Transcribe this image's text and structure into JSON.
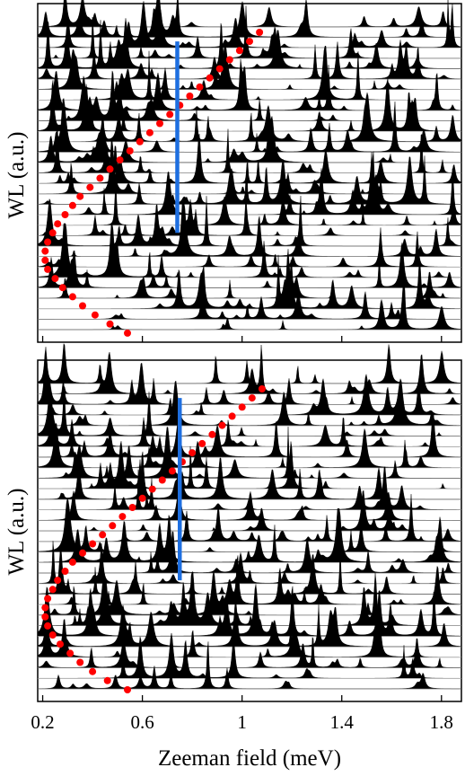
{
  "chart_data": [
    {
      "type": "waterfall-line",
      "panel": "top",
      "ylabel": "WL (a.u.)",
      "xlabel": "",
      "xlim": [
        0.18,
        1.88
      ],
      "xticks": [
        0.2,
        0.6,
        1.0,
        1.4,
        1.8
      ],
      "xtick_labels": [],
      "trace_count": 30,
      "series": [
        {
          "name": "",
          "color": "#ff0000",
          "style": "dots",
          "x": [
            1.07,
            1.03,
            0.99,
            0.95,
            0.91,
            0.87,
            0.83,
            0.79,
            0.75,
            0.71,
            0.67,
            0.63,
            0.59,
            0.55,
            0.51,
            0.47,
            0.43,
            0.39,
            0.35,
            0.32,
            0.29,
            0.26,
            0.24,
            0.22,
            0.21,
            0.21,
            0.22,
            0.25,
            0.28,
            0.32,
            0.36,
            0.41,
            0.47,
            0.54
          ],
          "y": [
            0,
            1,
            2,
            3,
            4,
            5,
            6,
            7,
            8,
            9,
            10,
            11,
            12,
            13,
            14,
            15,
            16,
            17,
            18,
            19,
            20,
            21,
            22,
            23,
            24,
            25,
            26,
            27,
            28,
            29,
            30,
            31,
            32,
            33
          ]
        },
        {
          "name": "",
          "color": "#1e6fe0",
          "style": "vertical-line",
          "x": 0.74,
          "y_range": [
            1,
            22
          ]
        }
      ]
    },
    {
      "type": "waterfall-line",
      "panel": "bottom",
      "ylabel": "WL (a.u.)",
      "xlabel": "Zeeman field (meV)",
      "xlim": [
        0.18,
        1.88
      ],
      "xticks": [
        0.2,
        0.6,
        1.0,
        1.4,
        1.8
      ],
      "xtick_labels": [
        "0.2",
        "0.6",
        "1",
        "1.4",
        "1.8"
      ],
      "trace_count": 30,
      "series": [
        {
          "name": "",
          "color": "#ff0000",
          "style": "dots",
          "x": [
            1.08,
            1.04,
            1.0,
            0.96,
            0.92,
            0.88,
            0.84,
            0.8,
            0.76,
            0.72,
            0.68,
            0.64,
            0.6,
            0.56,
            0.52,
            0.48,
            0.44,
            0.4,
            0.36,
            0.32,
            0.29,
            0.26,
            0.24,
            0.22,
            0.21,
            0.21,
            0.22,
            0.24,
            0.27,
            0.31,
            0.35,
            0.4,
            0.46,
            0.54
          ],
          "y": [
            0,
            1,
            2,
            3,
            4,
            5,
            6,
            7,
            8,
            9,
            10,
            11,
            12,
            13,
            14,
            15,
            16,
            17,
            18,
            19,
            20,
            21,
            22,
            23,
            24,
            25,
            26,
            27,
            28,
            29,
            30,
            31,
            32,
            33
          ]
        },
        {
          "name": "",
          "color": "#1e6fe0",
          "style": "vertical-line",
          "x": 0.75,
          "y_range": [
            1,
            21
          ]
        }
      ]
    }
  ]
}
